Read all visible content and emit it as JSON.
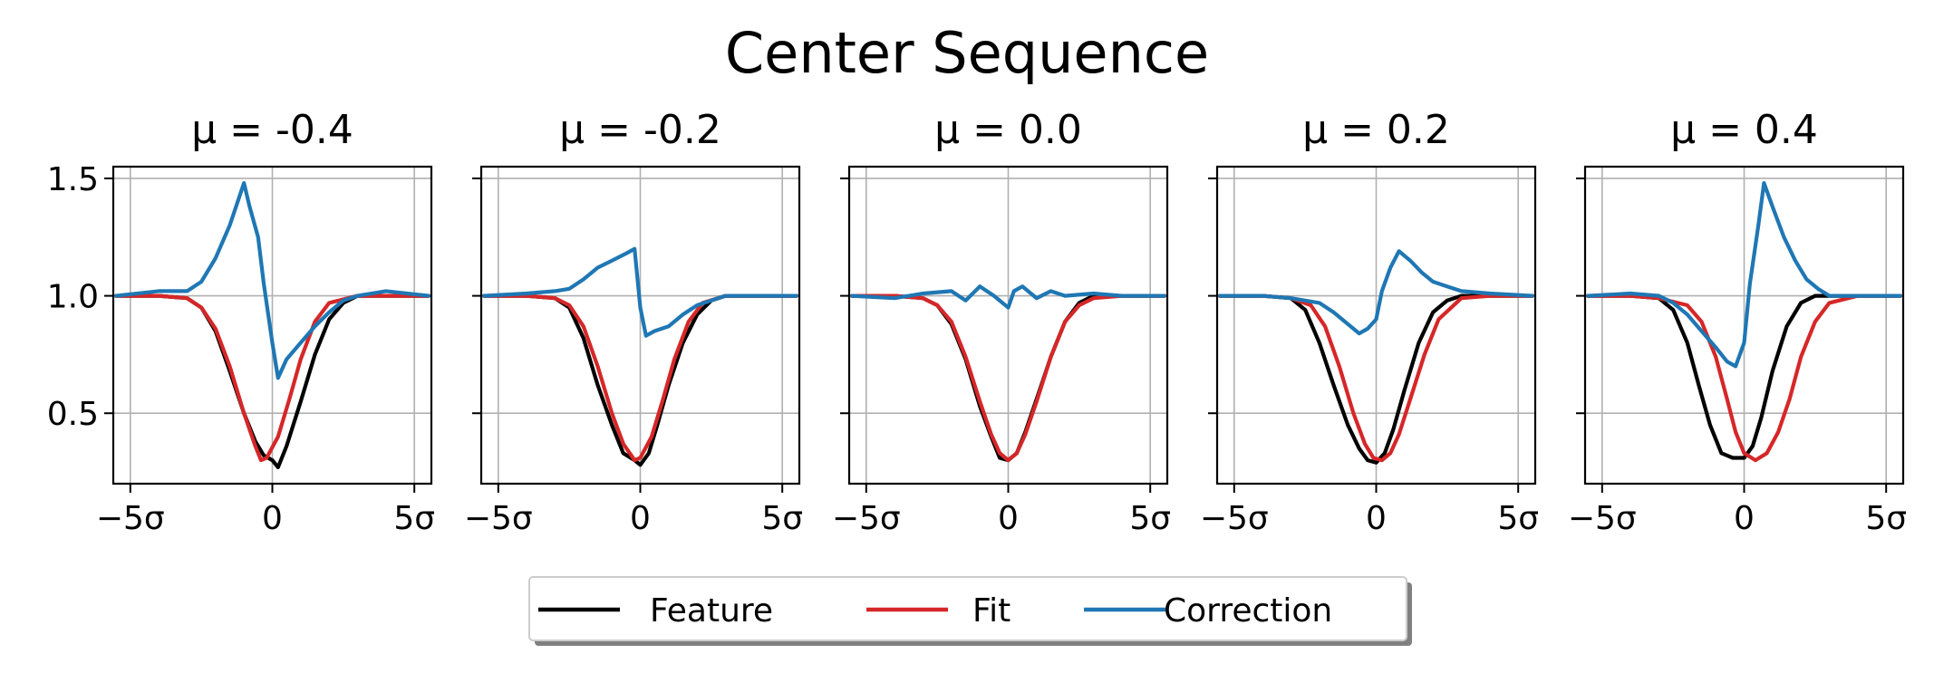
{
  "chart_data": {
    "type": "line",
    "title": "Center Sequence",
    "ylim": [
      0.2,
      1.55
    ],
    "xlim": [
      -5.6,
      5.6
    ],
    "x_ticks": [
      "−5σ",
      "0",
      "5σ"
    ],
    "y_ticks": [
      "1.5",
      "1.0",
      "0.5"
    ],
    "grid": true,
    "legend_position": "bottom-center",
    "colors": {
      "Feature": "#000000",
      "Fit": "#d62728",
      "Correction": "#1f77b4"
    },
    "panels": [
      {
        "title": "μ = -0.4",
        "mu": -0.4,
        "series": [
          {
            "name": "Feature",
            "x": [
              -5.5,
              -4,
              -3,
              -2.5,
              -2,
              -1.5,
              -1,
              -0.6,
              -0.3,
              0,
              0.2,
              0.5,
              1,
              1.5,
              2,
              2.5,
              3,
              4,
              5.5
            ],
            "y": [
              1.0,
              1.0,
              0.99,
              0.95,
              0.85,
              0.68,
              0.5,
              0.38,
              0.32,
              0.3,
              0.27,
              0.36,
              0.55,
              0.75,
              0.9,
              0.97,
              1.0,
              1.0,
              1.0
            ]
          },
          {
            "name": "Fit",
            "x": [
              -5.5,
              -4,
              -3,
              -2.5,
              -2,
              -1.5,
              -1,
              -0.6,
              -0.4,
              -0.2,
              0.2,
              0.6,
              1,
              1.5,
              2,
              3,
              4,
              5.5
            ],
            "y": [
              1.0,
              1.0,
              0.99,
              0.95,
              0.86,
              0.7,
              0.5,
              0.36,
              0.3,
              0.31,
              0.4,
              0.56,
              0.73,
              0.89,
              0.97,
              1.0,
              1.0,
              1.0
            ]
          },
          {
            "name": "Correction",
            "x": [
              -5.5,
              -4,
              -3,
              -2.5,
              -2,
              -1.5,
              -1,
              -0.8,
              -0.5,
              -0.3,
              0,
              0.2,
              0.5,
              1,
              1.5,
              2,
              2.5,
              3,
              4,
              5.5
            ],
            "y": [
              1.0,
              1.02,
              1.02,
              1.06,
              1.16,
              1.3,
              1.48,
              1.38,
              1.25,
              1.05,
              0.8,
              0.65,
              0.73,
              0.8,
              0.87,
              0.93,
              0.98,
              1.0,
              1.02,
              1.0
            ]
          }
        ]
      },
      {
        "title": "μ = -0.2",
        "mu": -0.2,
        "series": [
          {
            "name": "Feature",
            "x": [
              -5.5,
              -4,
              -3,
              -2.5,
              -2,
              -1.5,
              -1,
              -0.6,
              -0.2,
              0,
              0.3,
              0.6,
              1,
              1.5,
              2,
              2.5,
              3,
              4,
              5.5
            ],
            "y": [
              1.0,
              1.0,
              0.99,
              0.95,
              0.82,
              0.62,
              0.45,
              0.33,
              0.3,
              0.28,
              0.33,
              0.45,
              0.62,
              0.8,
              0.92,
              0.98,
              1.0,
              1.0,
              1.0
            ]
          },
          {
            "name": "Fit",
            "x": [
              -5.5,
              -4,
              -3,
              -2.5,
              -2,
              -1.5,
              -1,
              -0.6,
              -0.2,
              0,
              0.4,
              0.8,
              1.2,
              1.7,
              2.2,
              3,
              4,
              5.5
            ],
            "y": [
              1.0,
              1.0,
              0.99,
              0.96,
              0.87,
              0.7,
              0.5,
              0.37,
              0.3,
              0.31,
              0.4,
              0.56,
              0.73,
              0.89,
              0.97,
              1.0,
              1.0,
              1.0
            ]
          },
          {
            "name": "Correction",
            "x": [
              -5.5,
              -4,
              -3,
              -2.5,
              -2,
              -1.5,
              -1,
              -0.5,
              -0.2,
              0,
              0.2,
              0.5,
              1,
              1.5,
              2,
              2.5,
              3,
              4,
              5.5
            ],
            "y": [
              1.0,
              1.01,
              1.02,
              1.03,
              1.07,
              1.12,
              1.15,
              1.18,
              1.2,
              0.95,
              0.83,
              0.85,
              0.87,
              0.92,
              0.96,
              0.98,
              1.0,
              1.0,
              1.0
            ]
          }
        ]
      },
      {
        "title": "μ = 0.0",
        "mu": 0.0,
        "series": [
          {
            "name": "Feature",
            "x": [
              -5.5,
              -4,
              -3,
              -2.5,
              -2,
              -1.5,
              -1,
              -0.6,
              -0.3,
              0,
              0.3,
              0.6,
              1,
              1.5,
              2,
              2.5,
              3,
              4,
              5.5
            ],
            "y": [
              1.0,
              1.0,
              0.99,
              0.96,
              0.88,
              0.73,
              0.53,
              0.4,
              0.31,
              0.3,
              0.33,
              0.42,
              0.56,
              0.74,
              0.89,
              0.97,
              1.0,
              1.0,
              1.0
            ]
          },
          {
            "name": "Fit",
            "x": [
              -5.5,
              -4,
              -3,
              -2.5,
              -2,
              -1.5,
              -1,
              -0.6,
              -0.3,
              0,
              0.3,
              0.6,
              1,
              1.5,
              2,
              2.5,
              3,
              4,
              5.5
            ],
            "y": [
              1.0,
              1.0,
              0.99,
              0.96,
              0.89,
              0.74,
              0.55,
              0.41,
              0.33,
              0.3,
              0.33,
              0.41,
              0.55,
              0.74,
              0.89,
              0.96,
              0.99,
              1.0,
              1.0
            ]
          },
          {
            "name": "Correction",
            "x": [
              -5.5,
              -4,
              -3,
              -2,
              -1.5,
              -1,
              -0.5,
              -0.2,
              0,
              0.2,
              0.5,
              1,
              1.5,
              2,
              3,
              4,
              5.5
            ],
            "y": [
              1.0,
              0.99,
              1.01,
              1.02,
              0.98,
              1.04,
              1.0,
              0.97,
              0.95,
              1.02,
              1.04,
              0.99,
              1.02,
              1.0,
              1.01,
              1.0,
              1.0
            ]
          }
        ]
      },
      {
        "title": "μ = 0.2",
        "mu": 0.2,
        "series": [
          {
            "name": "Feature",
            "x": [
              -5.5,
              -4,
              -3,
              -2.5,
              -2,
              -1.5,
              -1,
              -0.6,
              -0.3,
              0,
              0.3,
              0.6,
              1,
              1.5,
              2,
              2.5,
              3,
              4,
              5.5
            ],
            "y": [
              1.0,
              1.0,
              0.99,
              0.94,
              0.8,
              0.62,
              0.45,
              0.35,
              0.3,
              0.29,
              0.33,
              0.43,
              0.6,
              0.8,
              0.93,
              0.98,
              1.0,
              1.0,
              1.0
            ]
          },
          {
            "name": "Fit",
            "x": [
              -5.5,
              -4,
              -3,
              -2.3,
              -1.8,
              -1.3,
              -0.8,
              -0.4,
              -0.1,
              0.2,
              0.5,
              0.8,
              1.2,
              1.7,
              2.2,
              3,
              4,
              5.5
            ],
            "y": [
              1.0,
              1.0,
              0.99,
              0.96,
              0.87,
              0.7,
              0.5,
              0.37,
              0.31,
              0.3,
              0.33,
              0.41,
              0.56,
              0.75,
              0.9,
              0.99,
              1.0,
              1.0
            ]
          },
          {
            "name": "Correction",
            "x": [
              -5.5,
              -4,
              -3,
              -2,
              -1.5,
              -1,
              -0.6,
              -0.3,
              0,
              0.2,
              0.5,
              0.8,
              1.2,
              1.6,
              2,
              2.5,
              3,
              4,
              5.5
            ],
            "y": [
              1.0,
              1.0,
              0.99,
              0.97,
              0.93,
              0.88,
              0.84,
              0.86,
              0.9,
              1.02,
              1.12,
              1.19,
              1.15,
              1.1,
              1.06,
              1.04,
              1.02,
              1.01,
              1.0
            ]
          }
        ]
      },
      {
        "title": "μ = 0.4",
        "mu": 0.4,
        "series": [
          {
            "name": "Feature",
            "x": [
              -5.5,
              -4,
              -3,
              -2.5,
              -2,
              -1.6,
              -1.2,
              -0.8,
              -0.4,
              0,
              0.3,
              0.6,
              1,
              1.5,
              2,
              2.5,
              3,
              4,
              5.5
            ],
            "y": [
              1.0,
              1.0,
              0.99,
              0.94,
              0.8,
              0.62,
              0.45,
              0.33,
              0.31,
              0.31,
              0.36,
              0.48,
              0.68,
              0.87,
              0.97,
              1.0,
              1.0,
              1.0,
              1.0
            ]
          },
          {
            "name": "Fit",
            "x": [
              -5.5,
              -4,
              -3,
              -2,
              -1.5,
              -1,
              -0.6,
              -0.3,
              0,
              0.4,
              0.8,
              1.2,
              1.6,
              2,
              2.5,
              3,
              4,
              5.5
            ],
            "y": [
              1.0,
              1.0,
              0.99,
              0.96,
              0.89,
              0.74,
              0.56,
              0.42,
              0.33,
              0.3,
              0.33,
              0.42,
              0.56,
              0.74,
              0.89,
              0.97,
              1.0,
              1.0
            ]
          },
          {
            "name": "Correction",
            "x": [
              -5.5,
              -4,
              -3,
              -2.5,
              -2,
              -1.5,
              -1,
              -0.6,
              -0.3,
              0,
              0.2,
              0.5,
              0.7,
              1,
              1.4,
              1.8,
              2.2,
              2.6,
              3,
              4,
              5.5
            ],
            "y": [
              1.0,
              1.01,
              1.0,
              0.97,
              0.92,
              0.85,
              0.78,
              0.72,
              0.7,
              0.8,
              1.05,
              1.3,
              1.48,
              1.38,
              1.25,
              1.15,
              1.07,
              1.03,
              1.0,
              1.0,
              1.0
            ]
          }
        ]
      }
    ]
  }
}
